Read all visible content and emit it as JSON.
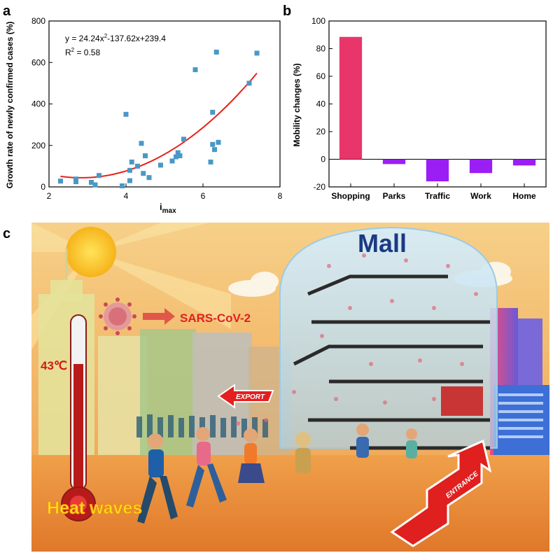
{
  "panel_labels": {
    "a": "a",
    "b": "b",
    "c": "c"
  },
  "chart_data": [
    {
      "type": "scatter",
      "panel": "a",
      "xlabel_main": "i",
      "xlabel_sub": "max",
      "ylabel": "Growth rate of newly confirmed cases (%)",
      "xlim": [
        2,
        8
      ],
      "ylim": [
        0,
        800
      ],
      "xticks": [
        2,
        4,
        6,
        8
      ],
      "yticks": [
        0,
        200,
        400,
        600,
        800
      ],
      "equation": {
        "main": "y = 24.24x",
        "sup": "2",
        "rest": "-137.62x+239.4"
      },
      "r2": {
        "main": "R",
        "sup": "2",
        "rest": " = 0.58"
      },
      "fit": {
        "a": 24.24,
        "b": -137.62,
        "c": 239.4,
        "x_range": [
          2.3,
          7.4
        ],
        "color": "#e8201c"
      },
      "marker_color": "#4a98c6",
      "points": [
        [
          2.3,
          28
        ],
        [
          2.7,
          38
        ],
        [
          2.7,
          25
        ],
        [
          3.1,
          22
        ],
        [
          3.2,
          10
        ],
        [
          3.3,
          55
        ],
        [
          3.9,
          5
        ],
        [
          4.0,
          350
        ],
        [
          4.1,
          80
        ],
        [
          4.1,
          30
        ],
        [
          4.15,
          120
        ],
        [
          4.3,
          100
        ],
        [
          4.4,
          210
        ],
        [
          4.45,
          65
        ],
        [
          4.5,
          150
        ],
        [
          4.6,
          45
        ],
        [
          4.9,
          105
        ],
        [
          5.2,
          125
        ],
        [
          5.3,
          145
        ],
        [
          5.35,
          165
        ],
        [
          5.4,
          150
        ],
        [
          5.5,
          230
        ],
        [
          5.8,
          565
        ],
        [
          6.2,
          120
        ],
        [
          6.25,
          360
        ],
        [
          6.25,
          205
        ],
        [
          6.3,
          180
        ],
        [
          6.4,
          215
        ],
        [
          6.35,
          650
        ],
        [
          7.2,
          500
        ],
        [
          7.4,
          645
        ]
      ]
    },
    {
      "type": "bar",
      "panel": "b",
      "ylabel": "Mobility changes (%)",
      "ylim": [
        -20,
        100
      ],
      "yticks": [
        -20,
        0,
        20,
        40,
        60,
        80,
        100
      ],
      "categories": [
        "Shopping",
        "Parks",
        "Traffic",
        "Work",
        "Home"
      ],
      "values": [
        88.5,
        -3.5,
        -16,
        -10,
        -4.5
      ],
      "colors": [
        "#e8366a",
        "#9b1ef5",
        "#9b1ef5",
        "#9b1ef5",
        "#9b1ef5"
      ]
    }
  ],
  "illustration": {
    "mall": "Mall",
    "virus": "SARS-CoV-2",
    "temperature": "43℃",
    "heat": "Heat waves",
    "export": "EXPORT",
    "entrance": "ENTRANCE"
  }
}
